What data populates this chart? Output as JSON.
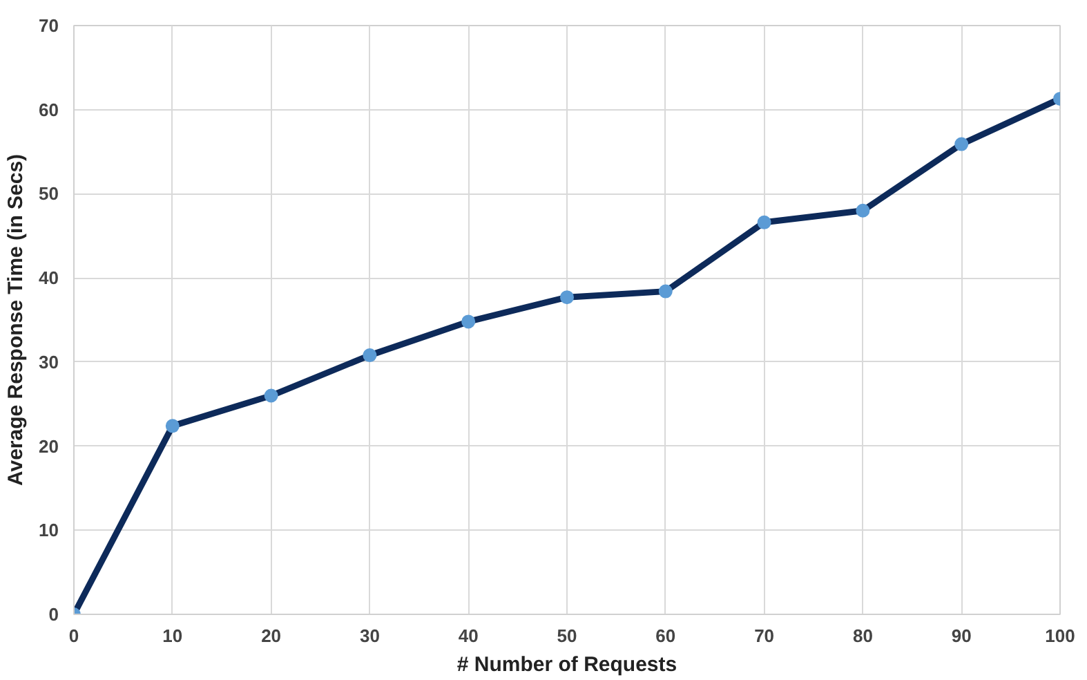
{
  "chart_data": {
    "type": "line",
    "xlabel": "# Number of Requests",
    "ylabel": "Average Response Time (in Secs)",
    "x": [
      0,
      10,
      20,
      30,
      40,
      50,
      60,
      70,
      80,
      90,
      100
    ],
    "series": [
      {
        "color": "#0d2a5a",
        "colors": [
          "#5b9bd5",
          "#5b9bd5",
          "#5b9bd5",
          "#5b9bd5",
          "#5b9bd5",
          "#5b9bd5",
          "#5b9bd5",
          "#5b9bd5",
          "#5b9bd5",
          "#5b9bd5",
          "#5b9bd5"
        ],
        "values": [
          0,
          22.4,
          26,
          30.8,
          34.8,
          37.7,
          38.4,
          46.6,
          48.0,
          55.9,
          61.3
        ]
      }
    ],
    "xlim": [
      0,
      100
    ],
    "ylim": [
      0,
      70
    ],
    "xticks": [
      0,
      10,
      20,
      30,
      40,
      50,
      60,
      70,
      80,
      90,
      100
    ],
    "yticks": [
      0,
      10,
      20,
      30,
      40,
      50,
      60,
      70
    ],
    "grid": true,
    "marker": "circle",
    "line_style": "solid"
  }
}
